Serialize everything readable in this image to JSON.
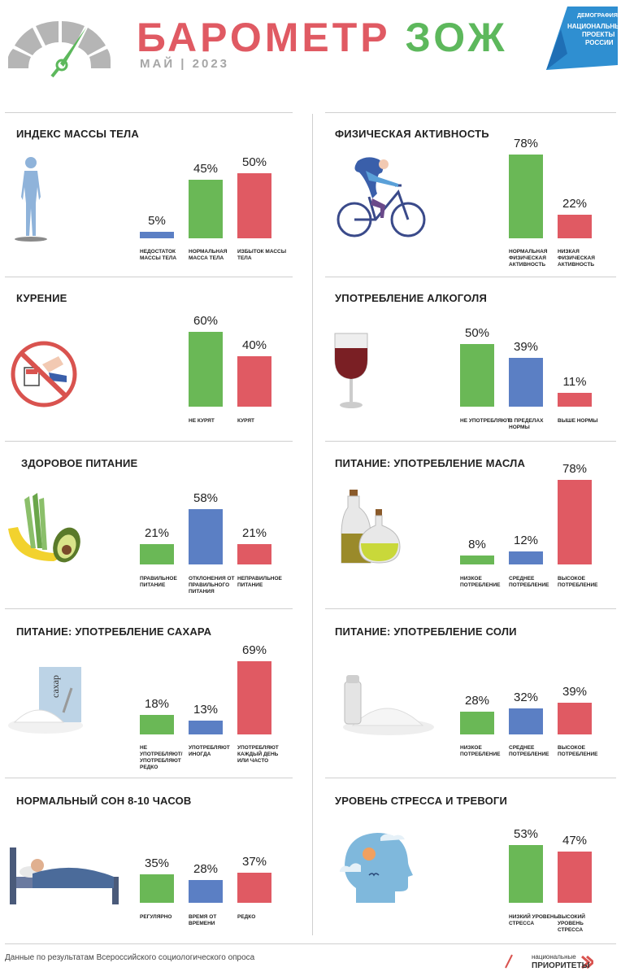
{
  "header": {
    "title_part1": "БАРОМЕТР",
    "title_part2": "ЗОЖ",
    "subtitle": "МАЙ  |  2023"
  },
  "logo": {
    "line1": "ДЕМОГРАФИЯ",
    "line2": "НАЦИОНАЛЬНЫЕ",
    "line3": "ПРОЕКТЫ",
    "line4": "РОССИИ"
  },
  "colors": {
    "green": "#6ab856",
    "blue": "#5b7fc4",
    "red": "#e05a63"
  },
  "chart_data": [
    {
      "type": "bar",
      "title": "ИНДЕКС МАССЫ ТЕЛА",
      "categories": [
        "НЕДОСТАТОК МАССЫ ТЕЛА",
        "НОРМАЛЬНАЯ МАССА ТЕЛА",
        "ИЗБЫТОК МАССЫ ТЕЛА"
      ],
      "values": [
        5,
        45,
        50
      ],
      "colors": [
        "blue",
        "green",
        "red"
      ],
      "ylim": [
        0,
        80
      ]
    },
    {
      "type": "bar",
      "title": "ФИЗИЧЕСКАЯ АКТИВНОСТЬ",
      "categories": [
        "НОРМАЛЬНАЯ ФИЗИЧЕСКАЯ АКТИВНОСТЬ",
        "НИЗКАЯ ФИЗИЧЕСКАЯ АКТИВНОСТЬ"
      ],
      "values": [
        78,
        22
      ],
      "colors": [
        "green",
        "red"
      ],
      "ylim": [
        0,
        80
      ]
    },
    {
      "type": "bar",
      "title": "КУРЕНИЕ",
      "categories": [
        "НЕ КУРЯТ",
        "КУРЯТ"
      ],
      "values": [
        60,
        40
      ],
      "colors": [
        "green",
        "red"
      ],
      "ylim": [
        0,
        80
      ]
    },
    {
      "type": "bar",
      "title": "УПОТРЕБЛЕНИЕ АЛКОГОЛЯ",
      "categories": [
        "НЕ УПОТРЕБЛЯЮТ",
        "В ПРЕДЕЛАХ НОРМЫ",
        "ВЫШЕ НОРМЫ"
      ],
      "values": [
        50,
        39,
        11
      ],
      "colors": [
        "green",
        "blue",
        "red"
      ],
      "ylim": [
        0,
        80
      ]
    },
    {
      "type": "bar",
      "title": "ЗДОРОВОЕ ПИТАНИЕ",
      "categories": [
        "ПРАВИЛЬНОЕ ПИТАНИЕ",
        "ОТКЛОНЕНИЯ ОТ ПРАВИЛЬНОГО ПИТАНИЯ",
        "НЕПРАВИЛЬНОЕ ПИТАНИЕ"
      ],
      "values": [
        21,
        58,
        21
      ],
      "colors": [
        "green",
        "blue",
        "red"
      ],
      "ylim": [
        0,
        80
      ]
    },
    {
      "type": "bar",
      "title": "ПИТАНИЕ: УПОТРЕБЛЕНИЕ МАСЛА",
      "categories": [
        "НИЗКОЕ ПОТРЕБЛЕНИЕ",
        "СРЕДНЕЕ ПОТРЕБЛЕНИЕ",
        "ВЫСОКОЕ ПОТРЕБЛЕНИЕ"
      ],
      "values": [
        8,
        12,
        78
      ],
      "colors": [
        "green",
        "blue",
        "red"
      ],
      "ylim": [
        0,
        80
      ]
    },
    {
      "type": "bar",
      "title": "ПИТАНИЕ: УПОТРЕБЛЕНИЕ САХАРА",
      "categories": [
        "НЕ УПОТРЕБЛЯЮТ/ УПОТРЕБЛЯЮТ РЕДКО",
        "УПОТРЕБЛЯЮТ ИНОГДА",
        "УПОТРЕБЛЯЮТ КАЖДЫЙ ДЕНЬ ИЛИ ЧАСТО"
      ],
      "values": [
        18,
        13,
        69
      ],
      "colors": [
        "green",
        "blue",
        "red"
      ],
      "ylim": [
        0,
        80
      ]
    },
    {
      "type": "bar",
      "title": "ПИТАНИЕ: УПОТРЕБЛЕНИЕ СОЛИ",
      "categories": [
        "НИЗКОЕ ПОТРЕБЛЕНИЕ",
        "СРЕДНЕЕ ПОТРЕБЛЕНИЕ",
        "ВЫСОКОЕ ПОТРЕБЛЕНИЕ"
      ],
      "values": [
        28,
        32,
        39
      ],
      "colors": [
        "green",
        "blue",
        "red"
      ],
      "ylim": [
        0,
        80
      ]
    },
    {
      "type": "bar",
      "title": "НОРМАЛЬНЫЙ СОН 8-10 ЧАСОВ",
      "categories": [
        "РЕГУЛЯРНО",
        "ВРЕМЯ ОТ ВРЕМЕНИ",
        "РЕДКО"
      ],
      "values": [
        35,
        28,
        37
      ],
      "colors": [
        "green",
        "blue",
        "red"
      ],
      "ylim": [
        0,
        80
      ]
    },
    {
      "type": "bar",
      "title": "УРОВЕНЬ СТРЕССА И ТРЕВОГИ",
      "categories": [
        "НИЗКИЙ УРОВЕНЬ СТРЕССА",
        "ВЫСОКИЙ УРОВЕНЬ СТРЕССА"
      ],
      "values": [
        53,
        47
      ],
      "colors": [
        "green",
        "red"
      ],
      "ylim": [
        0,
        80
      ]
    }
  ],
  "footer": {
    "note": "Данные по результатам Всероссийского социологического опроса",
    "logo_line1": "национальные",
    "logo_line2": "ПРИОРИТЕТЫ"
  }
}
